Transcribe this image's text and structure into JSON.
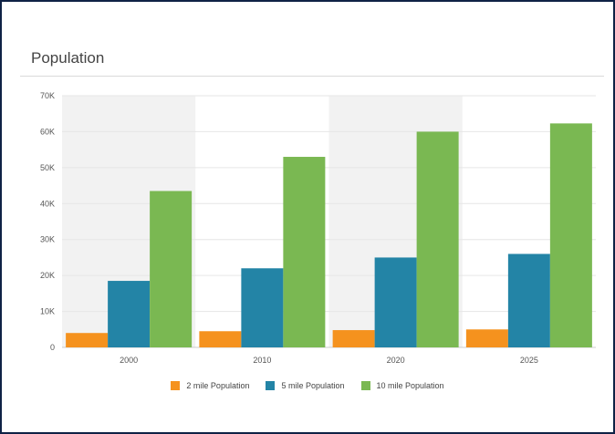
{
  "panel": {
    "title": "Population"
  },
  "chart_data": {
    "type": "bar",
    "categories": [
      "2000",
      "2010",
      "2020",
      "2025"
    ],
    "series": [
      {
        "name": "2 mile Population",
        "color": "#f5921e",
        "values": [
          4000,
          4500,
          4800,
          5000
        ]
      },
      {
        "name": "5 mile Population",
        "color": "#2384a6",
        "values": [
          18500,
          22000,
          25000,
          26000
        ]
      },
      {
        "name": "10 mile Population",
        "color": "#7ab852",
        "values": [
          43500,
          53000,
          60000,
          62300
        ]
      }
    ],
    "ylim": [
      0,
      70000
    ],
    "yticks": [
      0,
      10000,
      20000,
      30000,
      40000,
      50000,
      60000,
      70000
    ],
    "ytick_labels": [
      "0",
      "10K",
      "20K",
      "30K",
      "40K",
      "50K",
      "60K",
      "70K"
    ],
    "xlabel": "",
    "ylabel": "",
    "grid": true,
    "alternating_band_color": "#f2f2f2",
    "legend_position": "bottom"
  }
}
